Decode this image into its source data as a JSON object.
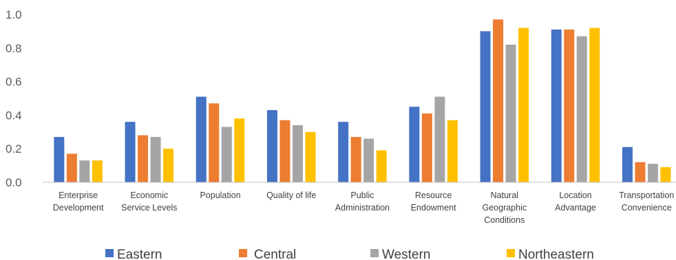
{
  "chart_data": {
    "type": "bar",
    "categories": [
      [
        "Enterprise",
        "Development"
      ],
      [
        "Economic",
        "Service Levels"
      ],
      [
        "Population"
      ],
      [
        "Quality of life"
      ],
      [
        "Public",
        "Administration"
      ],
      [
        "Resource",
        "Endowment"
      ],
      [
        "Natural",
        "Geographic",
        "Conditions"
      ],
      [
        "Location",
        "Advantage"
      ],
      [
        "Transportation",
        "Convenience"
      ]
    ],
    "series": [
      {
        "name": "Eastern",
        "color": "#4472C4",
        "values": [
          0.27,
          0.36,
          0.51,
          0.43,
          0.36,
          0.45,
          0.9,
          0.91,
          0.21
        ]
      },
      {
        "name": "Central",
        "color": "#ED7D31",
        "values": [
          0.17,
          0.28,
          0.47,
          0.37,
          0.27,
          0.41,
          0.97,
          0.91,
          0.12
        ]
      },
      {
        "name": "Western",
        "color": "#A5A5A5",
        "values": [
          0.13,
          0.27,
          0.33,
          0.34,
          0.26,
          0.51,
          0.82,
          0.87,
          0.11
        ]
      },
      {
        "name": "Northeastern",
        "color": "#FFC000",
        "values": [
          0.13,
          0.2,
          0.38,
          0.3,
          0.19,
          0.37,
          0.92,
          0.92,
          0.09
        ]
      }
    ],
    "yticks": [
      "0.0",
      "0.2",
      "0.4",
      "0.6",
      "0.8",
      "1.0"
    ],
    "ylim": [
      0,
      1.0
    ],
    "grid": false,
    "legend_position": "bottom"
  }
}
